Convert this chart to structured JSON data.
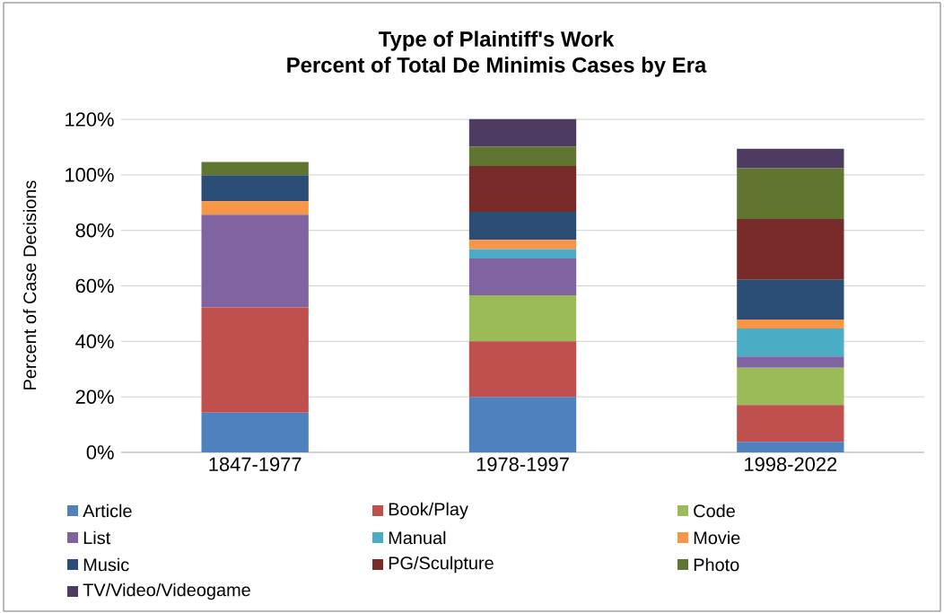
{
  "chart_data": {
    "type": "bar",
    "stacked": true,
    "title": "Type of Plaintiff's Work\nPercent of Total De Minimis Cases by Era",
    "ylabel": "Percent of Case Decisions",
    "categories": [
      "1847-1977",
      "1978-1997",
      "1998-2022"
    ],
    "series": [
      {
        "name": "Article",
        "color": "#4f81bd",
        "values": [
          14.3,
          20.0,
          3.8
        ]
      },
      {
        "name": "Book/Play",
        "color": "#c0504d",
        "values": [
          37.9,
          20.0,
          13.3
        ]
      },
      {
        "name": "Code",
        "color": "#9bbb59",
        "values": [
          null,
          16.6,
          13.4
        ]
      },
      {
        "name": "List",
        "color": "#8064a2",
        "values": [
          33.4,
          13.3,
          4.0
        ]
      },
      {
        "name": "Manual",
        "color": "#4bacc6",
        "values": [
          null,
          3.4,
          10.1
        ]
      },
      {
        "name": "Movie",
        "color": "#f79646",
        "values": [
          4.9,
          3.3,
          3.3
        ]
      },
      {
        "name": "Music",
        "color": "#2c4d75",
        "values": [
          9.4,
          10.1,
          14.3
        ]
      },
      {
        "name": "PG/Sculpture",
        "color": "#772c2a",
        "values": [
          null,
          16.5,
          21.9
        ]
      },
      {
        "name": "Photo",
        "color": "#5f7530",
        "values": [
          4.7,
          7.0,
          18.3
        ]
      },
      {
        "name": "TV/Video/Videogame",
        "color": "#4d3b62",
        "values": [
          null,
          9.9,
          7.0
        ]
      }
    ],
    "ylim": [
      0,
      120
    ],
    "yticks": [
      {
        "value": 0,
        "label": "0%"
      },
      {
        "value": 20,
        "label": "20%"
      },
      {
        "value": 40,
        "label": "40%"
      },
      {
        "value": 60,
        "label": "60%"
      },
      {
        "value": 80,
        "label": "80%"
      },
      {
        "value": 100,
        "label": "100%"
      },
      {
        "value": 120,
        "label": "120%"
      }
    ],
    "grid": "y",
    "legend": "bottom"
  }
}
